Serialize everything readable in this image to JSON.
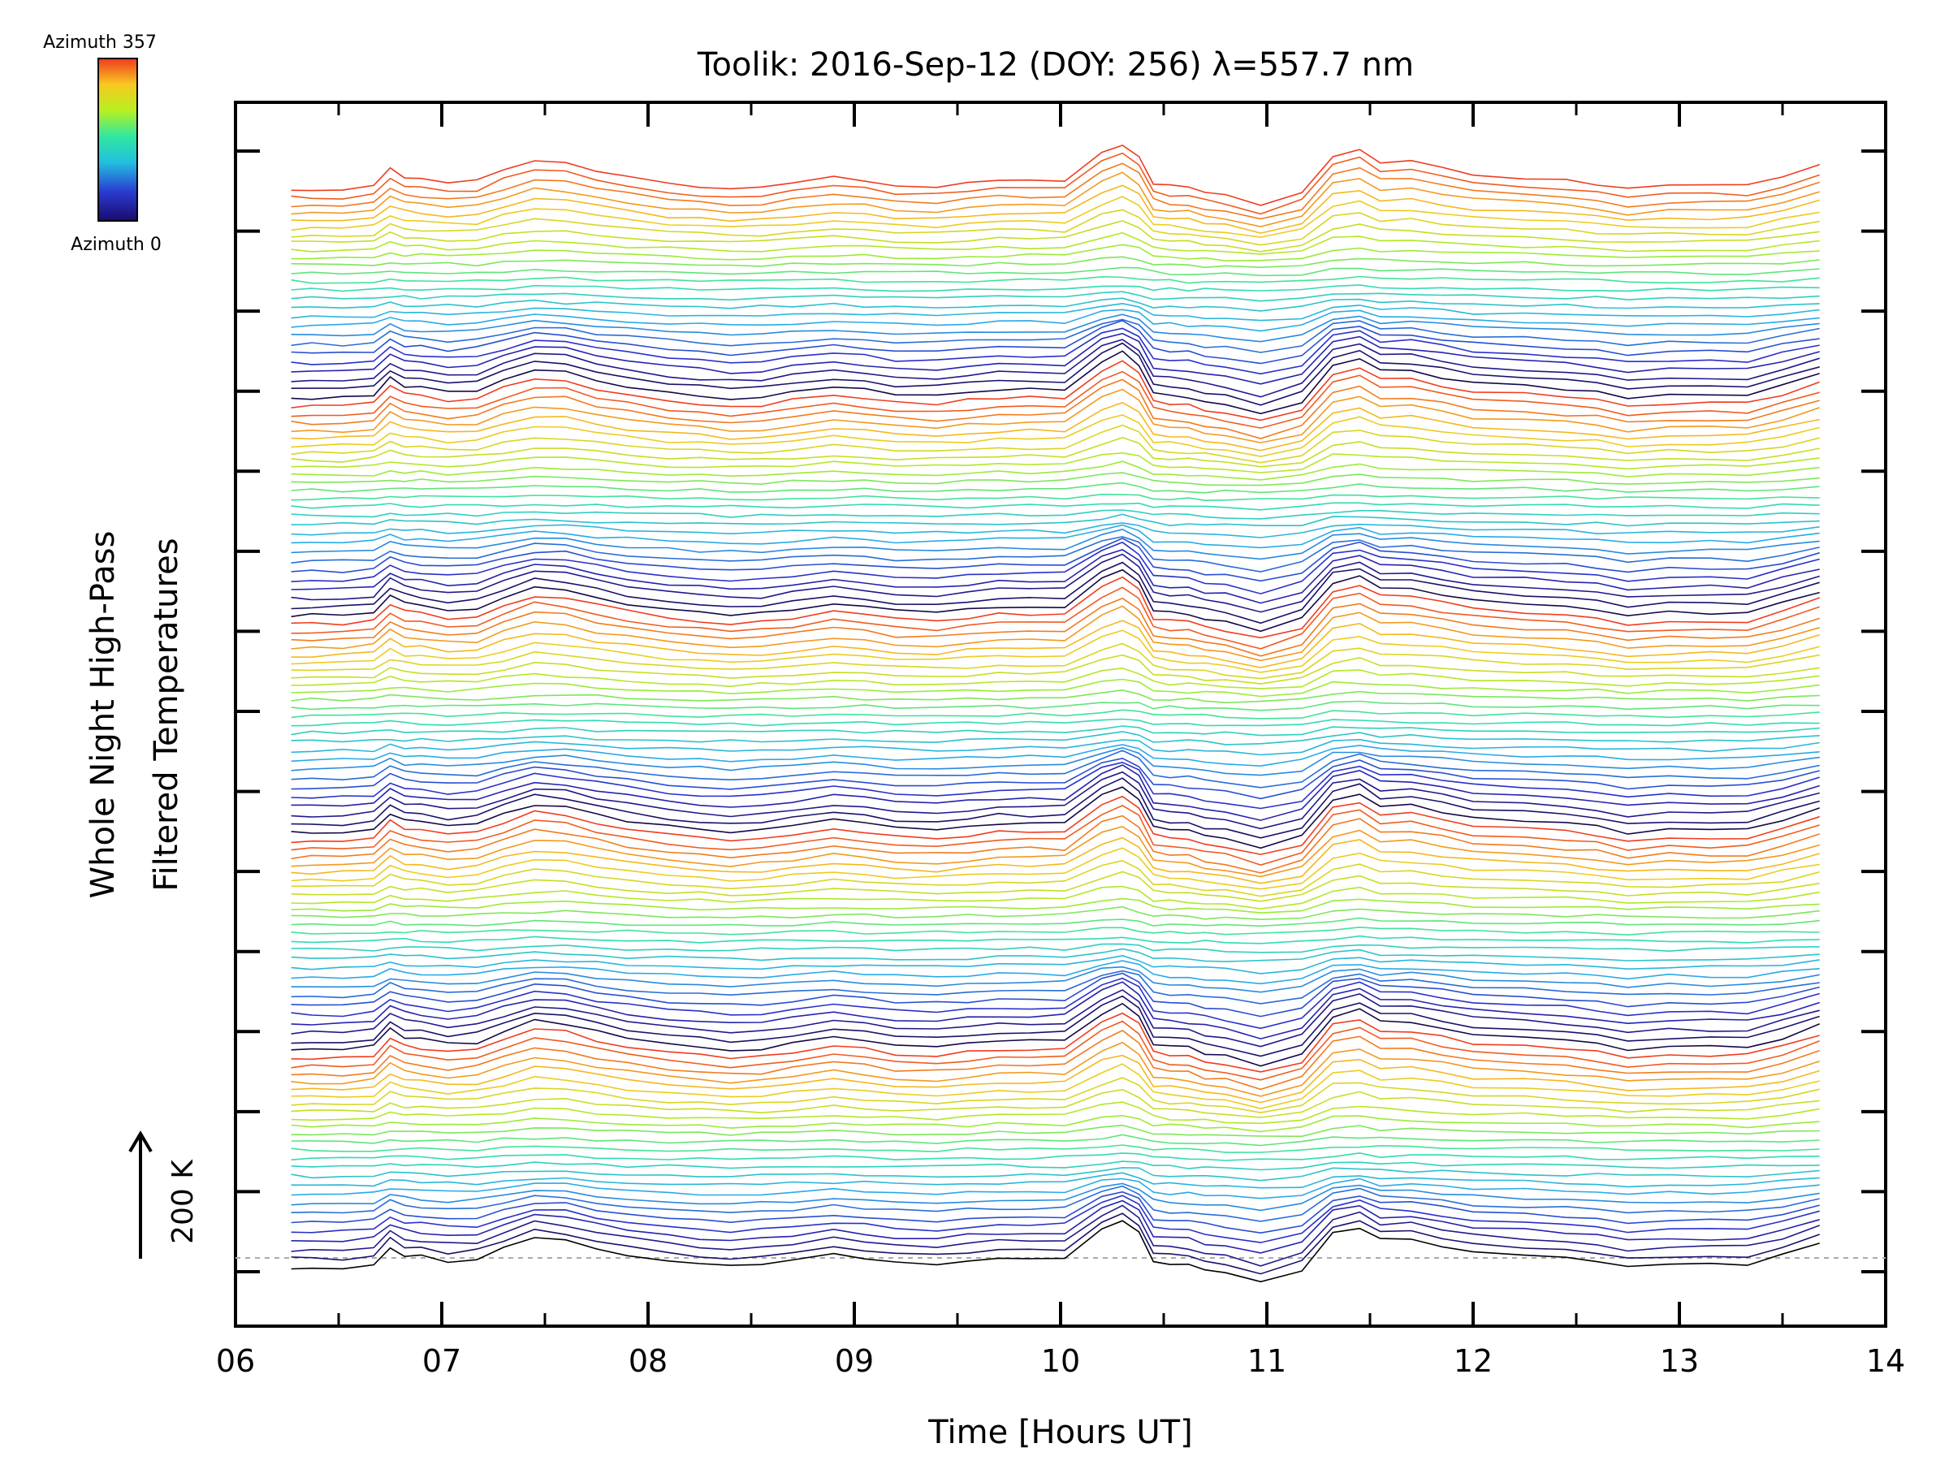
{
  "chart_data": {
    "type": "line",
    "title": "Toolik: 2016-Sep-12 (DOY: 256) λ=557.7 nm",
    "xlabel": "Time [Hours UT]",
    "ylabel_line1": "Whole Night High-Pass",
    "ylabel_line2": "Filtered Temperatures",
    "xlim": [
      6,
      14
    ],
    "x_ticks": [
      "06",
      "07",
      "08",
      "09",
      "10",
      "11",
      "12",
      "13",
      "14"
    ],
    "scale_bar_label": "200 K",
    "colorbar": {
      "top_label": "Azimuth 357",
      "bottom_label": "Azimuth 0",
      "colormap": "rainbow"
    },
    "series_count": 130,
    "series_offset_note": "traces vertically stacked, one per azimuth step",
    "x": [
      6.27,
      6.37,
      6.52,
      6.67,
      6.75,
      6.82,
      6.9,
      7.03,
      7.17,
      7.3,
      7.45,
      7.6,
      7.75,
      7.9,
      8.1,
      8.25,
      8.4,
      8.55,
      8.7,
      8.9,
      9.05,
      9.2,
      9.4,
      9.55,
      9.7,
      9.85,
      10.02,
      10.2,
      10.3,
      10.38,
      10.45,
      10.53,
      10.62,
      10.7,
      10.8,
      10.97,
      11.17,
      11.32,
      11.45,
      11.55,
      11.7,
      11.85,
      12.0,
      12.25,
      12.45,
      12.6,
      12.75,
      12.95,
      13.15,
      13.33,
      13.5,
      13.68
    ],
    "base_profile_K": [
      -15,
      -15,
      -15,
      -10,
      18,
      5,
      2,
      -5,
      -2,
      15,
      32,
      28,
      15,
      5,
      -5,
      -10,
      -15,
      -12,
      -5,
      5,
      0,
      -8,
      -10,
      -5,
      0,
      0,
      0,
      45,
      60,
      40,
      -5,
      -10,
      -12,
      -20,
      -25,
      -40,
      -20,
      40,
      50,
      30,
      30,
      20,
      10,
      5,
      0,
      -5,
      -15,
      -10,
      -10,
      -10,
      5,
      25
    ],
    "peak_times_hours_UT": [
      6.82,
      7.45,
      10.3,
      11.45,
      11.7
    ],
    "trough_time_hours_UT": 10.97
  }
}
